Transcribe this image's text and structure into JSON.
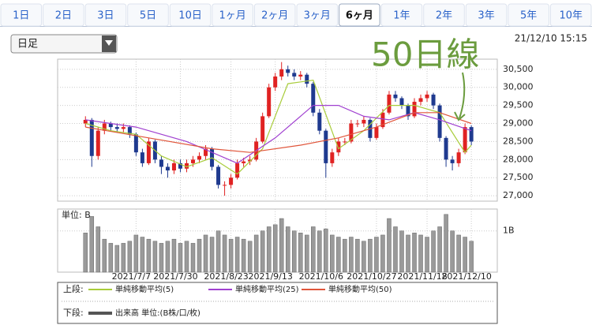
{
  "tabs": [
    "1日",
    "2日",
    "3日",
    "5日",
    "10日",
    "1ヶ月",
    "2ヶ月",
    "3ヶ月",
    "6ヶ月",
    "1年",
    "2年",
    "3年",
    "5年",
    "10年"
  ],
  "selected_tab": 8,
  "dropdown": "日足",
  "timestamp": "21/12/10 15:15",
  "chart_data": {
    "type": "candlestick",
    "annotation": "50日線",
    "annotation_color": "#6b9c3e",
    "up_color": "#e02222",
    "down_color": "#1f3a8f",
    "ylim": [
      26850,
      30780
    ],
    "yticks": [
      {
        "value": 27000,
        "label": "27,000"
      },
      {
        "value": 27500,
        "label": "27,500"
      },
      {
        "value": 28000,
        "label": "28,000"
      },
      {
        "value": 28500,
        "label": "28,500"
      },
      {
        "value": 29000,
        "label": "29,000"
      },
      {
        "value": 29500,
        "label": "29,500"
      },
      {
        "value": 30000,
        "label": "30,000"
      },
      {
        "value": 30500,
        "label": "30,500"
      }
    ],
    "xlim": [
      -4.4,
      65.1
    ],
    "xticks": [
      {
        "value": 8,
        "label": "2021/7/7"
      },
      {
        "value": 15,
        "label": "2021/7/30"
      },
      {
        "value": 23,
        "label": "2021/8/23"
      },
      {
        "value": 30,
        "label": "2021/9/13"
      },
      {
        "value": 38,
        "label": "2021/10/6"
      },
      {
        "value": 46,
        "label": "2021/10/27"
      },
      {
        "value": 54,
        "label": "2021/11/18"
      },
      {
        "value": 61,
        "label": "2021/12/10"
      }
    ],
    "grid": true,
    "candles": [
      [
        29000,
        29200,
        28900,
        29100
      ],
      [
        29100,
        29150,
        27800,
        28100
      ],
      [
        28100,
        28900,
        28000,
        28800
      ],
      [
        28800,
        29100,
        28700,
        29000
      ],
      [
        29000,
        29050,
        28800,
        28900
      ],
      [
        28900,
        29000,
        28750,
        28850
      ],
      [
        28850,
        29000,
        28750,
        28900
      ],
      [
        28900,
        28950,
        28600,
        28700
      ],
      [
        28700,
        28750,
        28100,
        28200
      ],
      [
        28200,
        28300,
        27800,
        27900
      ],
      [
        27900,
        28600,
        27850,
        28500
      ],
      [
        28500,
        28550,
        27900,
        28000
      ],
      [
        28000,
        28100,
        27600,
        27800
      ],
      [
        27800,
        27900,
        27500,
        27700
      ],
      [
        27700,
        28000,
        27600,
        27900
      ],
      [
        27900,
        28000,
        27650,
        27750
      ],
      [
        27750,
        28000,
        27650,
        27900
      ],
      [
        27900,
        28100,
        27800,
        28000
      ],
      [
        28000,
        28200,
        27900,
        28100
      ],
      [
        28100,
        28400,
        28000,
        28300
      ],
      [
        28300,
        28350,
        27700,
        27800
      ],
      [
        27800,
        27850,
        27200,
        27300
      ],
      [
        27300,
        27400,
        27000,
        27300
      ],
      [
        27300,
        27600,
        27200,
        27500
      ],
      [
        27500,
        28000,
        27450,
        27900
      ],
      [
        27900,
        28050,
        27800,
        27950
      ],
      [
        27950,
        28100,
        27850,
        28000
      ],
      [
        28000,
        28600,
        27950,
        28500
      ],
      [
        28500,
        29300,
        28450,
        29200
      ],
      [
        29200,
        30100,
        29150,
        30000
      ],
      [
        30000,
        30400,
        29900,
        30300
      ],
      [
        30300,
        30700,
        30200,
        30500
      ],
      [
        30500,
        30600,
        30300,
        30400
      ],
      [
        30400,
        30500,
        30200,
        30300
      ],
      [
        30300,
        30450,
        30200,
        30350
      ],
      [
        30350,
        30400,
        30000,
        30100
      ],
      [
        30100,
        30150,
        29200,
        29300
      ],
      [
        29300,
        29400,
        28700,
        28800
      ],
      [
        28800,
        28850,
        27500,
        27900
      ],
      [
        27900,
        28300,
        27800,
        28200
      ],
      [
        28200,
        28600,
        28100,
        28500
      ],
      [
        28500,
        28600,
        28400,
        28500
      ],
      [
        28500,
        29100,
        28450,
        29000
      ],
      [
        29000,
        29100,
        28900,
        29000
      ],
      [
        29000,
        29200,
        28900,
        29100
      ],
      [
        29100,
        29150,
        28500,
        28600
      ],
      [
        28600,
        29000,
        28550,
        28900
      ],
      [
        28900,
        29400,
        28850,
        29300
      ],
      [
        29300,
        29900,
        29250,
        29800
      ],
      [
        29800,
        29900,
        29600,
        29700
      ],
      [
        29700,
        29750,
        29400,
        29500
      ],
      [
        29500,
        29550,
        29100,
        29200
      ],
      [
        29200,
        29700,
        29150,
        29600
      ],
      [
        29600,
        29800,
        29500,
        29700
      ],
      [
        29700,
        29900,
        29600,
        29800
      ],
      [
        29800,
        29850,
        29400,
        29500
      ],
      [
        29500,
        29550,
        28500,
        28600
      ],
      [
        28600,
        28650,
        27800,
        28000
      ],
      [
        28000,
        28100,
        27700,
        27900
      ],
      [
        27900,
        28300,
        27800,
        28200
      ],
      [
        28200,
        29000,
        28150,
        28900
      ],
      [
        28900,
        28950,
        28400,
        28500
      ]
    ],
    "moving_averages": {
      "label": "上段:",
      "series": [
        {
          "name": "単純移動平均(5)",
          "color": "#a8cc3a",
          "x": [
            0,
            4,
            8,
            12,
            16,
            20,
            24,
            28,
            32,
            36,
            40,
            44,
            48,
            52,
            56,
            60,
            61
          ],
          "values": [
            29000,
            28800,
            28700,
            28100,
            27800,
            28050,
            27600,
            28300,
            30100,
            30200,
            28300,
            28800,
            29500,
            29500,
            29300,
            28200,
            28400
          ]
        },
        {
          "name": "単純移動平均(25)",
          "color": "#a040d0",
          "x": [
            0,
            8,
            16,
            24,
            30,
            36,
            40,
            44,
            48,
            52,
            56,
            61
          ],
          "values": [
            29100,
            28900,
            28500,
            27900,
            28600,
            29500,
            29500,
            29200,
            29100,
            29300,
            29100,
            28800
          ]
        },
        {
          "name": "単純移動平均(50)",
          "color": "#e0553a",
          "x": [
            0,
            10,
            20,
            26,
            34,
            40,
            46,
            52,
            56,
            61
          ],
          "values": [
            28900,
            28600,
            28300,
            28200,
            28400,
            28600,
            28900,
            29300,
            29300,
            29000
          ]
        }
      ]
    },
    "volume": {
      "label": "下段:",
      "name": "出来高 単位:(B株/口/枚)",
      "unit_label": "単位: B",
      "color": "#9a9a9a",
      "legend_color": "#555555",
      "ylim": [
        0,
        1.53
      ],
      "yticks": [
        {
          "value": 1,
          "label": "1B"
        }
      ],
      "values": [
        0.95,
        1.35,
        1.1,
        0.8,
        0.7,
        0.65,
        0.7,
        0.75,
        0.9,
        0.85,
        0.8,
        0.75,
        0.7,
        0.75,
        0.8,
        0.7,
        0.75,
        0.7,
        0.8,
        0.9,
        0.85,
        1.0,
        0.9,
        0.8,
        0.85,
        0.8,
        0.75,
        0.9,
        1.0,
        1.1,
        1.15,
        1.3,
        1.1,
        1.0,
        0.95,
        0.9,
        1.1,
        1.0,
        1.05,
        0.9,
        0.85,
        0.8,
        0.85,
        0.8,
        0.75,
        0.8,
        0.85,
        0.9,
        1.3,
        1.1,
        1.0,
        0.9,
        0.95,
        0.9,
        0.85,
        1.0,
        1.1,
        1.4,
        1.0,
        0.9,
        0.85,
        0.75
      ]
    }
  }
}
